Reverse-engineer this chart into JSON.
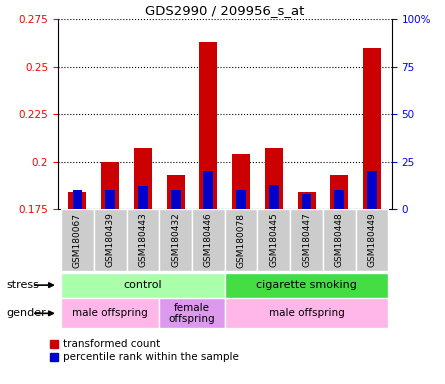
{
  "title": "GDS2990 / 209956_s_at",
  "samples": [
    "GSM180067",
    "GSM180439",
    "GSM180443",
    "GSM180432",
    "GSM180446",
    "GSM180078",
    "GSM180445",
    "GSM180447",
    "GSM180448",
    "GSM180449"
  ],
  "red_values": [
    0.184,
    0.2,
    0.207,
    0.193,
    0.263,
    0.204,
    0.207,
    0.184,
    0.193,
    0.26
  ],
  "blue_percentiles": [
    10,
    10,
    12,
    10,
    20,
    10,
    13,
    8,
    10,
    20
  ],
  "ymin": 0.175,
  "ymax": 0.275,
  "yticks": [
    0.175,
    0.2,
    0.225,
    0.25,
    0.275
  ],
  "ytick_labels": [
    "0.175",
    "0.2",
    "0.225",
    "0.25",
    "0.275"
  ],
  "right_yticks": [
    0,
    25,
    50,
    75,
    100
  ],
  "right_ytick_labels": [
    "0",
    "25",
    "50",
    "75",
    "100%"
  ],
  "stress_groups": [
    {
      "label": "control",
      "start": 0,
      "end": 4,
      "color": "#AAFFAA"
    },
    {
      "label": "cigarette smoking",
      "start": 5,
      "end": 9,
      "color": "#44DD44"
    }
  ],
  "gender_groups": [
    {
      "label": "male offspring",
      "start": 0,
      "end": 2,
      "color": "#FFB6E8"
    },
    {
      "label": "female\noffspring",
      "start": 3,
      "end": 4,
      "color": "#DD99EE"
    },
    {
      "label": "male offspring",
      "start": 5,
      "end": 9,
      "color": "#FFB6E8"
    }
  ],
  "red_color": "#CC0000",
  "blue_color": "#0000CC",
  "bar_width": 0.55,
  "blue_bar_width": 0.3,
  "legend_red": "transformed count",
  "legend_blue": "percentile rank within the sample"
}
